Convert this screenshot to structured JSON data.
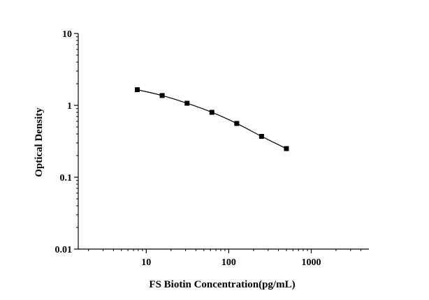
{
  "chart_data": {
    "type": "scatter",
    "title": "",
    "xlabel": "FS Biotin Concentration(pg/mL)",
    "ylabel": "Optical Density",
    "xscale": "log",
    "yscale": "log",
    "xlim": [
      1.5,
      5000
    ],
    "ylim": [
      0.01,
      10
    ],
    "xticks": [
      10,
      100,
      1000
    ],
    "xtick_labels": [
      "10",
      "100",
      "1000"
    ],
    "yticks": [
      0.01,
      0.1,
      1,
      10
    ],
    "ytick_labels": [
      "0.01",
      "0.1",
      "1",
      "10"
    ],
    "grid": false,
    "legend": "none",
    "series": [
      {
        "x": [
          7.8,
          15.6,
          31.25,
          62.5,
          125,
          250,
          500
        ],
        "y": [
          1.65,
          1.37,
          1.07,
          0.8,
          0.56,
          0.37,
          0.25
        ],
        "marker": "square",
        "color": "#000000",
        "fitted_curve": true
      }
    ]
  }
}
